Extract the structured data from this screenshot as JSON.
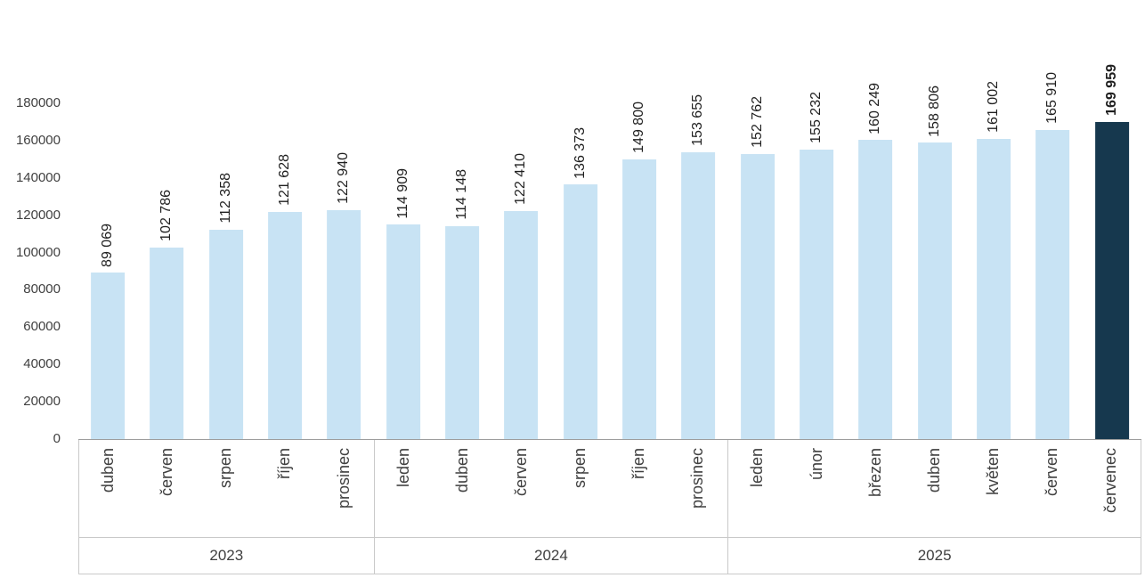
{
  "chart_data": {
    "type": "bar",
    "title": "",
    "xlabel": "",
    "ylabel": "",
    "ylim": [
      0,
      180000
    ],
    "yticks": [
      0,
      20000,
      40000,
      60000,
      80000,
      100000,
      120000,
      140000,
      160000,
      180000
    ],
    "gridlines": "none",
    "legend": "none",
    "value_label_style": "rotated 90deg above each bar, thousands separated by space",
    "groups": [
      {
        "label": "2023",
        "categories": [
          "duben",
          "červen",
          "srpen",
          "říjen",
          "prosinec"
        ],
        "values": [
          89069,
          102786,
          112358,
          121628,
          122940
        ]
      },
      {
        "label": "2024",
        "categories": [
          "leden",
          "duben",
          "červen",
          "srpen",
          "říjen",
          "prosinec"
        ],
        "values": [
          114909,
          114148,
          122410,
          136373,
          149800,
          153655
        ]
      },
      {
        "label": "2025",
        "categories": [
          "leden",
          "únor",
          "březen",
          "duben",
          "květen",
          "červen",
          "červenec"
        ],
        "values": [
          152762,
          155232,
          160249,
          158806,
          161002,
          165910,
          169959
        ]
      }
    ],
    "highlight": {
      "group": "2025",
      "category": "červenec",
      "value": 169959,
      "label_bold": true
    },
    "colors": {
      "bar": "#c8e3f4",
      "highlight_bar": "#16384e",
      "value_label_text": "#1f1f1f",
      "axis_text": "#404040",
      "axis_line": "#9d9d9d",
      "group_line": "#c9c9c9",
      "background": "#ffffff"
    }
  }
}
